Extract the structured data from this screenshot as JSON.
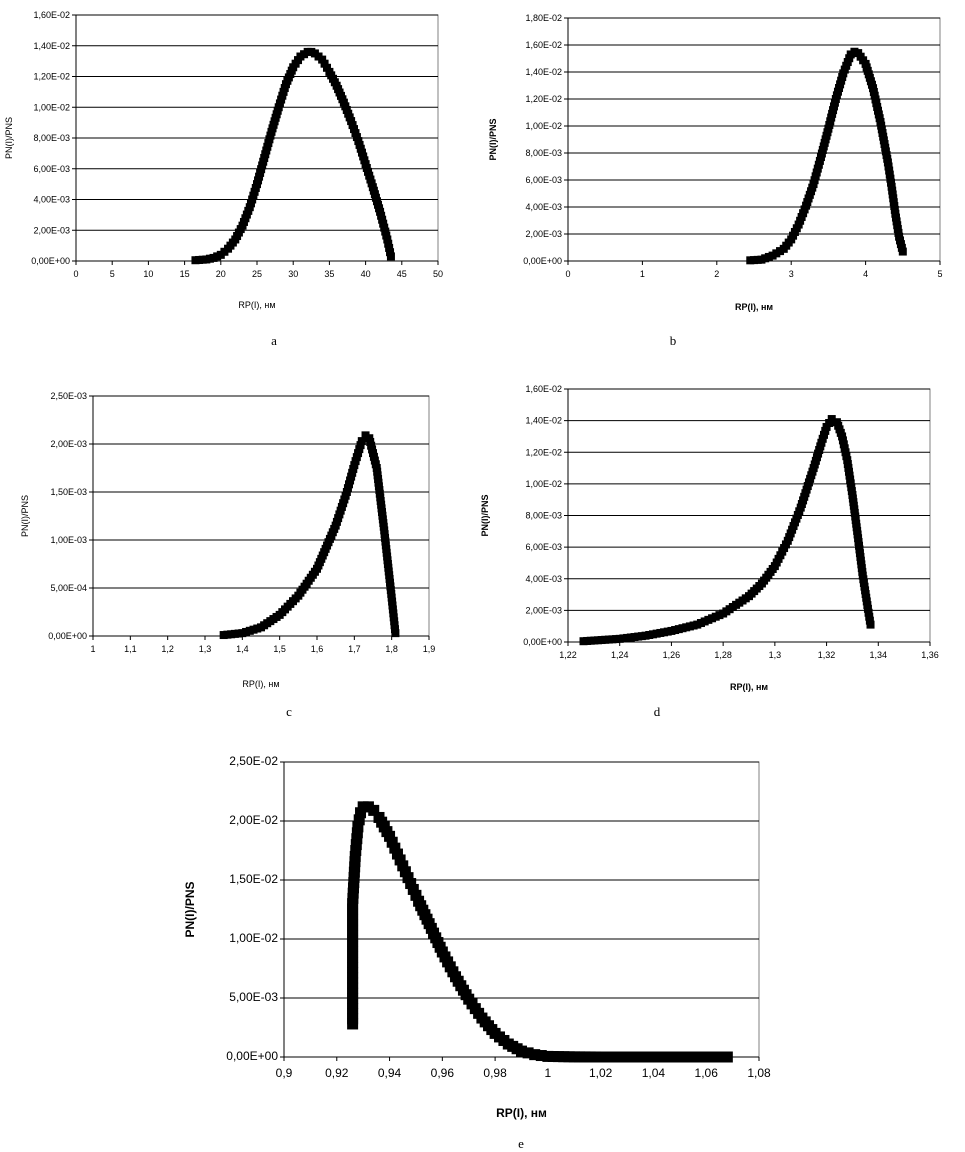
{
  "chart_data": [
    {
      "id": "a",
      "type": "scatter",
      "panel_label": "a",
      "xlabel": "RP(I), нм",
      "ylabel": "PN(I)/PNS",
      "xlim": [
        0,
        50
      ],
      "ylim": [
        0,
        0.016
      ],
      "x_ticks": [
        0,
        5,
        10,
        15,
        20,
        25,
        30,
        35,
        40,
        45,
        50
      ],
      "x_tick_labels": [
        "0",
        "5",
        "10",
        "15",
        "20",
        "25",
        "30",
        "35",
        "40",
        "45",
        "50"
      ],
      "y_ticks": [
        0,
        0.002,
        0.004,
        0.006,
        0.008,
        0.01,
        0.012,
        0.014,
        0.016
      ],
      "y_tick_labels": [
        "0,00E+00",
        "2,00E-03",
        "4,00E-03",
        "6,00E-03",
        "8,00E-03",
        "1,00E-02",
        "1,20E-02",
        "1,40E-02",
        "1,60E-02"
      ],
      "grid": "horizontal",
      "series": [
        {
          "x": [
            16.5,
            18,
            19,
            20,
            21,
            22,
            23,
            24,
            25,
            26,
            27,
            28,
            29,
            30,
            31,
            32,
            32.5,
            33,
            34,
            35,
            36,
            37,
            38,
            39,
            40,
            41,
            42,
            43,
            43.5
          ],
          "values": [
            5e-05,
            0.0001,
            0.0002,
            0.0004,
            0.0008,
            0.0014,
            0.0023,
            0.0035,
            0.005,
            0.0067,
            0.0084,
            0.01,
            0.0115,
            0.0126,
            0.0133,
            0.0136,
            0.0136,
            0.0135,
            0.0131,
            0.0123,
            0.0114,
            0.0103,
            0.0091,
            0.0078,
            0.0063,
            0.0048,
            0.0032,
            0.0014,
            0.0003
          ]
        }
      ]
    },
    {
      "id": "b",
      "type": "scatter",
      "panel_label": "b",
      "xlabel": "RP(I), нм",
      "ylabel": "PN(I)/PNS",
      "xlim": [
        0,
        5
      ],
      "ylim": [
        0,
        0.018
      ],
      "x_ticks": [
        0,
        1,
        2,
        3,
        4,
        5
      ],
      "x_tick_labels": [
        "0",
        "1",
        "2",
        "3",
        "4",
        "5"
      ],
      "y_ticks": [
        0,
        0.002,
        0.004,
        0.006,
        0.008,
        0.01,
        0.012,
        0.014,
        0.016,
        0.018
      ],
      "y_tick_labels": [
        "0,00E+00",
        "2,00E-03",
        "4,00E-03",
        "6,00E-03",
        "8,00E-03",
        "1,00E-02",
        "1,20E-02",
        "1,40E-02",
        "1,60E-02",
        "1,80E-02"
      ],
      "grid": "horizontal",
      "series": [
        {
          "x": [
            2.45,
            2.6,
            2.75,
            2.9,
            3.0,
            3.1,
            3.2,
            3.3,
            3.4,
            3.5,
            3.6,
            3.7,
            3.8,
            3.85,
            3.9,
            4.0,
            4.1,
            4.2,
            4.3,
            4.35,
            4.4,
            4.45,
            4.5
          ],
          "values": [
            5e-05,
            0.0001,
            0.0004,
            0.0009,
            0.0016,
            0.0027,
            0.0041,
            0.0057,
            0.0077,
            0.0098,
            0.012,
            0.0139,
            0.0153,
            0.0155,
            0.0154,
            0.0146,
            0.0128,
            0.0103,
            0.0073,
            0.0055,
            0.0035,
            0.0018,
            0.0007
          ]
        }
      ]
    },
    {
      "id": "c",
      "type": "scatter",
      "panel_label": "c",
      "xlabel": "RP(I), нм",
      "ylabel": "PN(I)/PNS",
      "xlim": [
        1,
        1.9
      ],
      "ylim": [
        0,
        0.0025
      ],
      "x_ticks": [
        1,
        1.1,
        1.2,
        1.3,
        1.4,
        1.5,
        1.6,
        1.7,
        1.8,
        1.9
      ],
      "x_tick_labels": [
        "1",
        "1,1",
        "1,2",
        "1,3",
        "1,4",
        "1,5",
        "1,6",
        "1,7",
        "1,8",
        "1,9"
      ],
      "y_ticks": [
        0,
        0.0005,
        0.001,
        0.0015,
        0.002,
        0.0025
      ],
      "y_tick_labels": [
        "0,00E+00",
        "5,00E-04",
        "1,00E-03",
        "1,50E-03",
        "2,00E-03",
        "2,50E-03"
      ],
      "grid": "horizontal",
      "series": [
        {
          "x": [
            1.35,
            1.4,
            1.45,
            1.5,
            1.55,
            1.6,
            1.65,
            1.68,
            1.7,
            1.72,
            1.73,
            1.74,
            1.76,
            1.78,
            1.8,
            1.81
          ],
          "values": [
            1e-05,
            3e-05,
            9e-05,
            0.00022,
            0.00042,
            0.0007,
            0.00115,
            0.0015,
            0.00178,
            0.00203,
            0.00209,
            0.00206,
            0.00175,
            0.0011,
            0.0004,
            3e-05
          ]
        }
      ]
    },
    {
      "id": "d",
      "type": "scatter",
      "panel_label": "d",
      "xlabel": "RP(I), нм",
      "ylabel": "PN(I)/PNS",
      "xlim": [
        1.22,
        1.36
      ],
      "ylim": [
        0,
        0.016
      ],
      "x_ticks": [
        1.22,
        1.24,
        1.26,
        1.28,
        1.3,
        1.32,
        1.34,
        1.36
      ],
      "x_tick_labels": [
        "1,22",
        "1,24",
        "1,26",
        "1,28",
        "1,3",
        "1,32",
        "1,34",
        "1,36"
      ],
      "y_ticks": [
        0,
        0.002,
        0.004,
        0.006,
        0.008,
        0.01,
        0.012,
        0.014,
        0.016
      ],
      "y_tick_labels": [
        "0,00E+00",
        "2,00E-03",
        "4,00E-03",
        "6,00E-03",
        "8,00E-03",
        "1,00E-02",
        "1,20E-02",
        "1,40E-02",
        "1,60E-02"
      ],
      "grid": "horizontal",
      "series": [
        {
          "x": [
            1.226,
            1.24,
            1.25,
            1.26,
            1.27,
            1.28,
            1.29,
            1.295,
            1.3,
            1.305,
            1.31,
            1.315,
            1.318,
            1.32,
            1.322,
            1.324,
            1.326,
            1.328,
            1.33,
            1.332,
            1.334,
            1.336,
            1.337
          ],
          "values": [
            5e-05,
            0.0002,
            0.0004,
            0.0007,
            0.0011,
            0.0018,
            0.0029,
            0.0037,
            0.0048,
            0.0064,
            0.0085,
            0.011,
            0.0126,
            0.0136,
            0.0141,
            0.0139,
            0.013,
            0.0115,
            0.0093,
            0.0068,
            0.0042,
            0.0021,
            0.0011
          ]
        }
      ]
    },
    {
      "id": "e",
      "type": "scatter",
      "panel_label": "e",
      "xlabel": "RP(I), нм",
      "ylabel": "PN(I)/PNS",
      "xlim": [
        0.9,
        1.08
      ],
      "ylim": [
        0,
        0.025
      ],
      "x_ticks": [
        0.9,
        0.92,
        0.94,
        0.96,
        0.98,
        1,
        1.02,
        1.04,
        1.06,
        1.08
      ],
      "x_tick_labels": [
        "0,9",
        "0,92",
        "0,94",
        "0,96",
        "0,98",
        "1",
        "1,02",
        "1,04",
        "1,06",
        "1,08"
      ],
      "y_ticks": [
        0,
        0.005,
        0.01,
        0.015,
        0.02,
        0.025
      ],
      "y_tick_labels": [
        "0,00E+00",
        "5,00E-03",
        "1,00E-02",
        "1,50E-02",
        "2,00E-02",
        "2,50E-02"
      ],
      "grid": "horizontal",
      "series": [
        {
          "x": [
            0.926,
            0.926,
            0.926,
            0.927,
            0.928,
            0.929,
            0.93,
            0.932,
            0.934,
            0.936,
            0.938,
            0.94,
            0.942,
            0.945,
            0.948,
            0.951,
            0.955,
            0.96,
            0.965,
            0.97,
            0.975,
            0.98,
            0.985,
            0.99,
            0.995,
            1.0,
            1.01,
            1.02,
            1.03,
            1.04,
            1.05,
            1.06,
            1.068
          ],
          "values": [
            0.0028,
            0.008,
            0.013,
            0.017,
            0.0195,
            0.0207,
            0.0212,
            0.0212,
            0.0209,
            0.0203,
            0.0195,
            0.0187,
            0.0177,
            0.0162,
            0.0147,
            0.0132,
            0.0113,
            0.0089,
            0.0068,
            0.0049,
            0.0033,
            0.002,
            0.0011,
            0.0005,
            0.0002,
            5e-05,
            1e-05,
            0,
            0,
            0,
            0,
            0,
            0
          ]
        }
      ]
    }
  ]
}
